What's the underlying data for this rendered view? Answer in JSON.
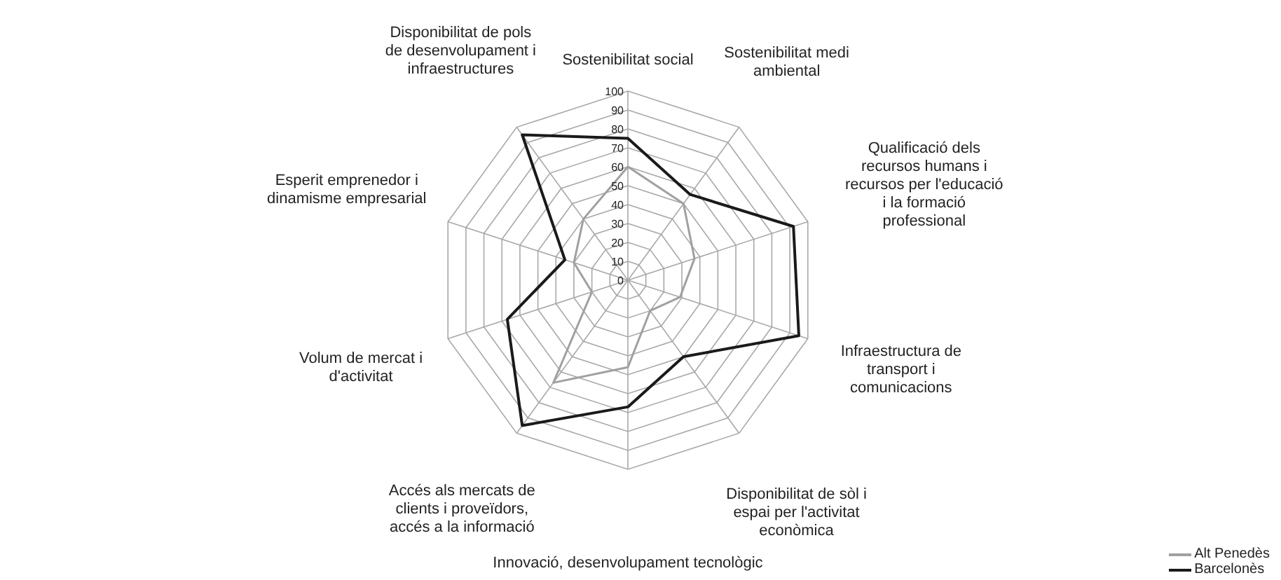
{
  "chart_data": {
    "type": "radar",
    "categories": [
      "Sostenibilitat social",
      "Sostenibilitat medi ambiental",
      "Qualificació dels recursos humans i recursos per l'educació i la formació professional",
      "Infraestructura de transport i comunicacions",
      "Disponibilitat de sòl i espai per l'activitat econòmica",
      "Innovació, desenvolupament tecnològic",
      "Accés als mercats de clients i proveïdors, accés a la informació",
      "Volum de mercat i d'activitat",
      "Esperit emprenedor i dinamisme empresarial",
      "Disponibilitat de pols de desenvolupament i infraestructures"
    ],
    "series": [
      {
        "name": "Alt Penedès",
        "color": "#a0a0a0",
        "values": [
          60,
          50,
          37,
          29,
          20,
          46,
          67,
          20,
          30,
          40
        ]
      },
      {
        "name": "Barcelonès",
        "color": "#1a1a1a",
        "values": [
          75,
          56,
          92,
          95,
          50,
          67,
          95,
          67,
          35,
          95
        ]
      }
    ],
    "ylim": [
      0,
      100
    ],
    "yticks": [
      0,
      10,
      20,
      30,
      40,
      50,
      60,
      70,
      80,
      90,
      100
    ],
    "grid": true,
    "legend": "bottom right",
    "marker": "none",
    "line_style": "solid"
  }
}
